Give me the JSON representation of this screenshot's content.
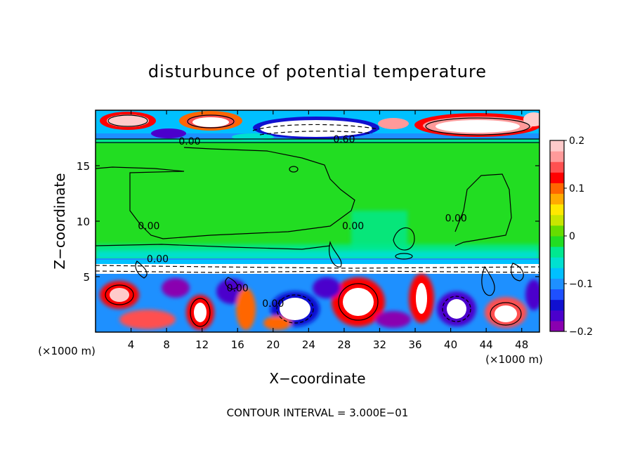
{
  "chart_data": {
    "type": "heatmap",
    "title": "disturbunce of potential temperature",
    "xlabel": "X−coordinate",
    "ylabel": "Z−coordinate",
    "x_unit_left": "(×1000 m)",
    "x_unit_right": "(×1000 m)",
    "footer": "CONTOUR INTERVAL = 3.000E−01",
    "xlim": [
      0,
      50
    ],
    "ylim": [
      0,
      20
    ],
    "x_ticks": [
      4,
      8,
      12,
      16,
      20,
      24,
      28,
      32,
      36,
      40,
      44,
      48
    ],
    "y_ticks": [
      5,
      10,
      15
    ],
    "colorbar": {
      "range": [
        -0.2,
        0.2
      ],
      "tick_values": [
        0.2,
        0.1,
        0,
        -0.1,
        -0.2
      ],
      "tick_labels": [
        "0.2",
        "0.1",
        "0",
        "−0.1",
        "−0.2"
      ],
      "colors": [
        "#8a00b0",
        "#4b00cc",
        "#1010d0",
        "#1e50ff",
        "#1e90ff",
        "#00c0ff",
        "#00e0d0",
        "#00e890",
        "#22dd22",
        "#66dd00",
        "#c8e600",
        "#ffe800",
        "#ffaa00",
        "#ff6600",
        "#ff0000",
        "#ff5050",
        "#ff9a9a",
        "#ffcaca"
      ]
    },
    "contour_labels": [
      {
        "text": "0.00",
        "x": 10.6,
        "z": 17.2
      },
      {
        "text": "0.60",
        "x": 28.0,
        "z": 17.4
      },
      {
        "text": "0.00",
        "x": 6.0,
        "z": 9.6
      },
      {
        "text": "0.00",
        "x": 7.0,
        "z": 6.6
      },
      {
        "text": "0.00",
        "x": 16.0,
        "z": 4.0
      },
      {
        "text": "0.00",
        "x": 20.0,
        "z": 2.6
      },
      {
        "text": "0.00",
        "x": 29.0,
        "z": 9.6
      },
      {
        "text": "0.00",
        "x": 40.6,
        "z": 10.3
      }
    ]
  }
}
